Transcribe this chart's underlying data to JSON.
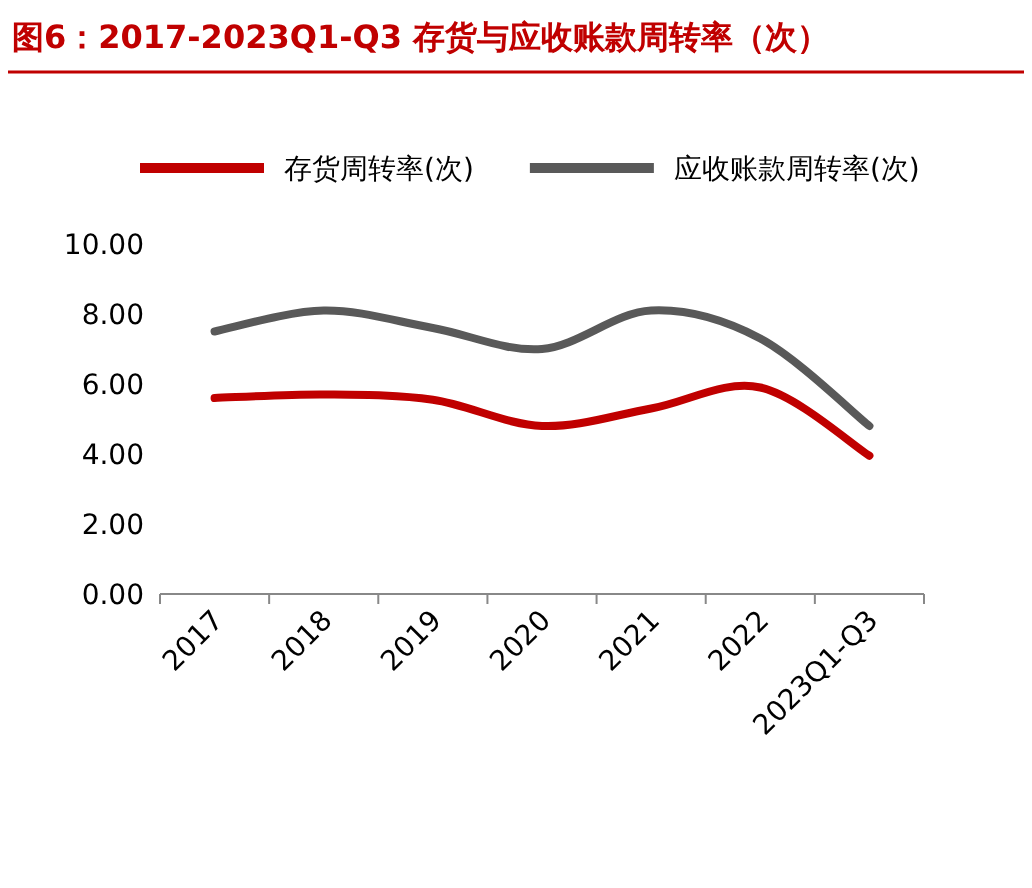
{
  "chart_data": {
    "type": "line",
    "title": "图6：2017-2023Q1-Q3 存货与应收账款周转率（次）",
    "categories": [
      "2017",
      "2018",
      "2019",
      "2020",
      "2021",
      "2022",
      "2023Q1-Q3"
    ],
    "series": [
      {
        "name": "存货周转率(次)",
        "color": "#c00000",
        "values": [
          5.6,
          5.7,
          5.55,
          4.8,
          5.3,
          5.9,
          3.95
        ]
      },
      {
        "name": "应收账款周转率(次)",
        "color": "#595959",
        "values": [
          7.5,
          8.1,
          7.6,
          7.0,
          8.1,
          7.3,
          4.8
        ]
      }
    ],
    "ylim": [
      0,
      10
    ],
    "yticks": [
      {
        "value": 0,
        "label": "0.00"
      },
      {
        "value": 2,
        "label": "2.00"
      },
      {
        "value": 4,
        "label": "4.00"
      },
      {
        "value": 6,
        "label": "6.00"
      },
      {
        "value": 8,
        "label": "8.00"
      },
      {
        "value": 10,
        "label": "10.00"
      }
    ],
    "legend": "top",
    "grid": false,
    "marker": "none",
    "line_style": "solid"
  }
}
